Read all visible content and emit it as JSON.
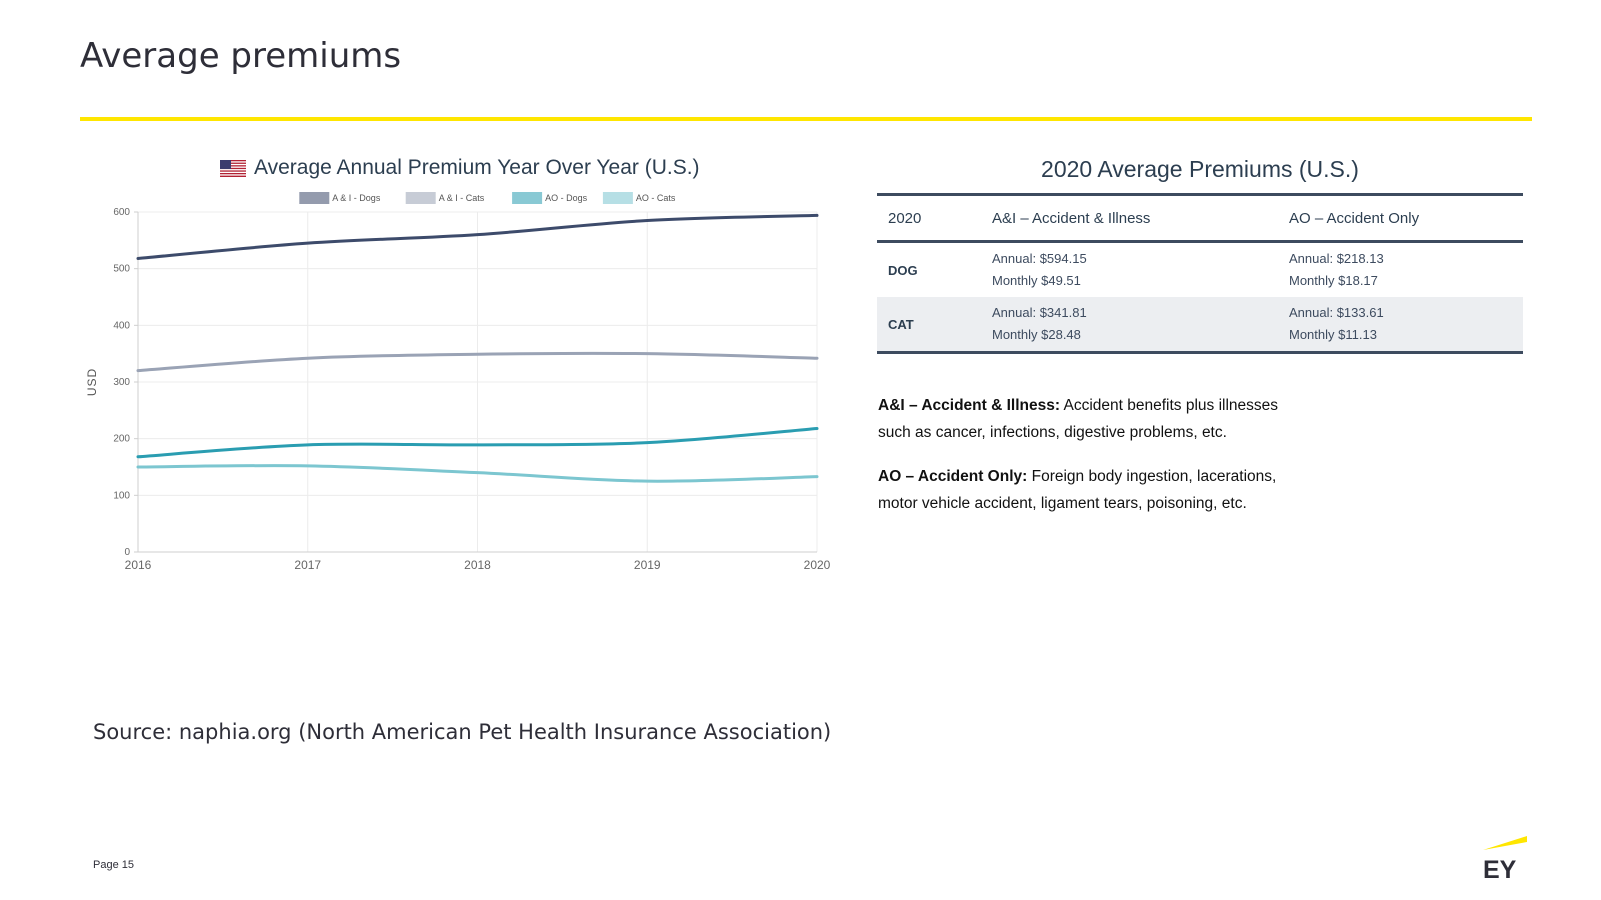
{
  "page": {
    "title": "Average premiums",
    "source": "Source:  naphia.org (North American Pet Health Insurance Association)",
    "page_number": "Page 15",
    "logo_text": "EY",
    "colors": {
      "accent_yellow": "#ffe600",
      "dark_text": "#2e2e38",
      "table_rule": "#3d4b5f"
    }
  },
  "chart_data": {
    "type": "line",
    "title": "Average Annual Premium Year Over Year (U.S.)",
    "title_icon": "us-flag-icon",
    "xlabel": "",
    "ylabel": "USD",
    "x": [
      2016,
      2017,
      2018,
      2019,
      2020
    ],
    "x_ticks": [
      "2016",
      "2017",
      "2018",
      "2019",
      "2020"
    ],
    "y_ticks": [
      "0",
      "100",
      "200",
      "300",
      "400",
      "500",
      "600"
    ],
    "ylim": [
      0,
      600
    ],
    "grid": true,
    "legend_position": "top-center",
    "series": [
      {
        "name": "A & I - Dogs",
        "color": "#3d4b6b",
        "values": [
          518,
          545,
          560,
          585,
          594
        ]
      },
      {
        "name": "A & I - Cats",
        "color": "#9aa3b5",
        "values": [
          320,
          342,
          349,
          350,
          342
        ]
      },
      {
        "name": "AO - Dogs",
        "color": "#2a9db1",
        "values": [
          168,
          189,
          189,
          193,
          218
        ]
      },
      {
        "name": "AO - Cats",
        "color": "#7cc6d0",
        "values": [
          150,
          152,
          140,
          125,
          133
        ]
      }
    ]
  },
  "table": {
    "title": "2020 Average Premiums (U.S.)",
    "headers": [
      "2020",
      "A&I – Accident & Illness",
      "AO – Accident Only"
    ],
    "rows": [
      {
        "label": "DOG",
        "ai": [
          "Annual: $594.15",
          "Monthly $49.51"
        ],
        "ao": [
          "Annual: $218.13",
          "Monthly $18.17"
        ]
      },
      {
        "label": "CAT",
        "ai": [
          "Annual: $341.81",
          "Monthly $28.48"
        ],
        "ao": [
          "Annual: $133.61",
          "Monthly $11.13"
        ]
      }
    ]
  },
  "definitions": [
    {
      "term": "A&I – Accident & Illness:",
      "text": " Accident benefits plus illnesses such as cancer, infections, digestive problems, etc."
    },
    {
      "term": "AO – Accident Only:",
      "text": " Foreign body ingestion, lacerations, motor vehicle accident, ligament tears, poisoning, etc."
    }
  ]
}
